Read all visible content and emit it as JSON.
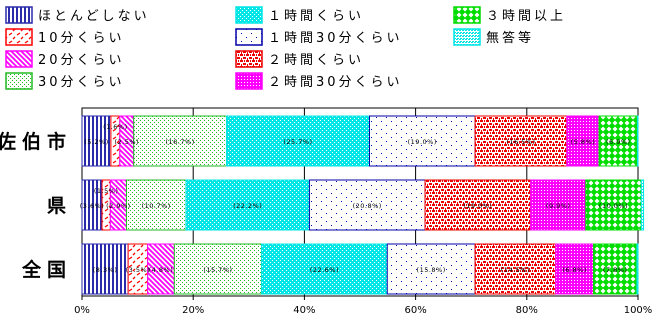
{
  "chart_data": {
    "type": "bar",
    "orientation": "horizontal",
    "stacked": true,
    "categories": [
      "佐伯市",
      "県",
      "全国"
    ],
    "series": [
      {
        "name": "ほとんどしない",
        "color": "#2a2aaa",
        "pattern": "vlines",
        "values": [
          5.2,
          3.6,
          8.3
        ],
        "labels": [
          "(5.2%)",
          "(3.6%)",
          "(8.3%)"
        ]
      },
      {
        "name": "10分くらい",
        "color": "#ff0000",
        "pattern": "dashes",
        "values": [
          1.6,
          1.5,
          3.5
        ],
        "labels": [
          "(1.6%)",
          "(1.5%)",
          "(3.5%)"
        ]
      },
      {
        "name": "20分くらい",
        "color": "#ff00ff",
        "pattern": "diag",
        "values": [
          2.5,
          2.9,
          4.8
        ],
        "labels": [
          "(2.5%)",
          "(2.9%)",
          "(4.8%)"
        ]
      },
      {
        "name": "30分くらい",
        "color": "#22bb22",
        "pattern": "dots",
        "values": [
          16.7,
          10.7,
          15.7
        ],
        "labels": [
          "(16.7%)",
          "(10.7%)",
          "(15.7%)"
        ]
      },
      {
        "name": "１時間くらい",
        "color": "#00e5e5",
        "pattern": "grid",
        "values": [
          25.7,
          22.2,
          22.6
        ],
        "labels": [
          "(25.7%)",
          "(22.2%)",
          "(22.6%)"
        ]
      },
      {
        "name": "１時間30分くらい",
        "color": "#0000aa",
        "pattern": "sparse",
        "values": [
          19.0,
          20.8,
          15.8
        ],
        "labels": [
          "(19.0%)",
          "(20.8%)",
          "(15.8%)"
        ]
      },
      {
        "name": "２時間くらい",
        "color": "#ee0000",
        "pattern": "blobs",
        "values": [
          16.5,
          19.0,
          14.5
        ],
        "labels": [
          "(16.5%)",
          "(19.0%)",
          "(14.5%)"
        ]
      },
      {
        "name": "２時間30分くらい",
        "color": "#ff00ff",
        "pattern": "dense",
        "values": [
          5.8,
          9.9,
          6.8
        ],
        "labels": [
          "(5.8%)",
          "(9.9%)",
          "(6.8%)"
        ]
      },
      {
        "name": "３時間以上",
        "color": "#00dd00",
        "pattern": "diamond",
        "values": [
          6.9,
          10.0,
          7.8
        ],
        "labels": [
          "(6.9%)",
          "(10.0%)",
          "(7.8%)"
        ]
      },
      {
        "name": "無答等",
        "color": "#00e5e5",
        "pattern": "tiny",
        "values": [
          0.1,
          0.4,
          0.2
        ],
        "labels": [
          "",
          "",
          ""
        ]
      }
    ],
    "x_ticks": [
      "0%",
      "20%",
      "40%",
      "60%",
      "80%",
      "100%"
    ],
    "xlim": [
      0,
      100
    ],
    "legend": "top"
  }
}
